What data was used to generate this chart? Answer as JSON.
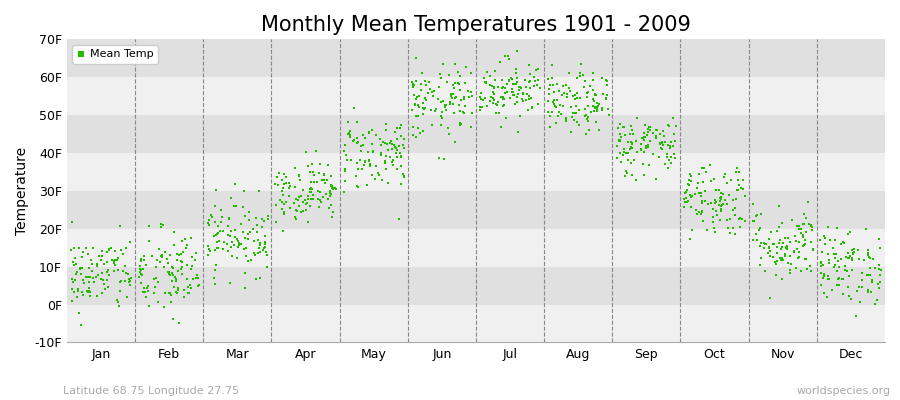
{
  "title": "Monthly Mean Temperatures 1901 - 2009",
  "ylabel": "Temperature",
  "xlabel_labels": [
    "Jan",
    "Feb",
    "Mar",
    "Apr",
    "May",
    "Jun",
    "Jul",
    "Aug",
    "Sep",
    "Oct",
    "Nov",
    "Dec"
  ],
  "subtitle": "Latitude 68.75 Longitude 27.75",
  "watermark": "worldspecies.org",
  "dot_color": "#22bb00",
  "dot_size": 3,
  "ylim": [
    -10,
    70
  ],
  "yticks": [
    -10,
    0,
    10,
    20,
    30,
    40,
    50,
    60,
    70
  ],
  "ytick_labels": [
    "-10F",
    "0F",
    "10F",
    "20F",
    "30F",
    "40F",
    "50F",
    "60F",
    "70F"
  ],
  "background_color": "#ffffff",
  "band_color_light": "#f0f0f0",
  "band_color_dark": "#e0e0e0",
  "title_fontsize": 15,
  "legend_label": "Mean Temp",
  "monthly_means_F": [
    8,
    8,
    18,
    30,
    40,
    53,
    57,
    53,
    42,
    28,
    16,
    10
  ],
  "monthly_stds_F": [
    5,
    6,
    5,
    4,
    5,
    5,
    4,
    4,
    4,
    5,
    5,
    5
  ],
  "n_years": 109,
  "seed": 42
}
